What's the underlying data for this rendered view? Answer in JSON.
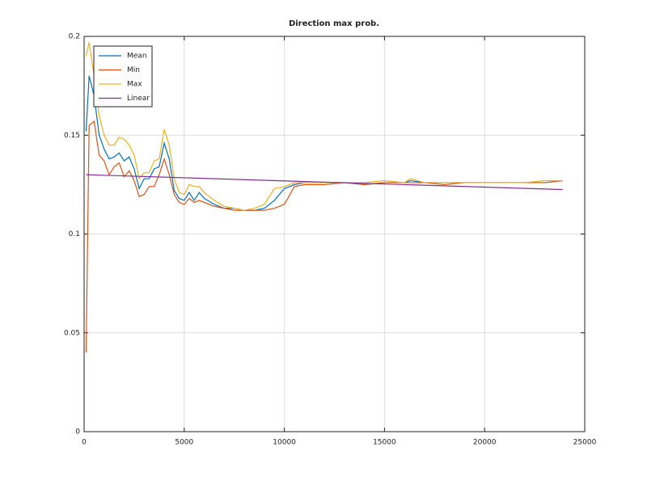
{
  "chart_data": {
    "type": "line",
    "title": "Direction max prob.",
    "x": [
      100,
      250,
      500,
      750,
      1000,
      1250,
      1500,
      1750,
      2000,
      2250,
      2500,
      2750,
      3000,
      3250,
      3500,
      3750,
      4000,
      4250,
      4500,
      4750,
      5000,
      5250,
      5500,
      5750,
      6000,
      6500,
      7000,
      7500,
      8000,
      8500,
      9000,
      9500,
      10000,
      10500,
      11000,
      12000,
      13000,
      14000,
      15000,
      16000,
      16300,
      17000,
      18000,
      19000,
      20000,
      21000,
      22000,
      23000,
      23900
    ],
    "series": [
      {
        "name": "Mean",
        "color": "#0072bd",
        "values": [
          0.152,
          0.18,
          0.17,
          0.15,
          0.143,
          0.138,
          0.139,
          0.141,
          0.137,
          0.139,
          0.133,
          0.123,
          0.128,
          0.128,
          0.133,
          0.134,
          0.146,
          0.138,
          0.122,
          0.118,
          0.117,
          0.121,
          0.117,
          0.121,
          0.118,
          0.115,
          0.113,
          0.113,
          0.112,
          0.112,
          0.113,
          0.117,
          0.123,
          0.125,
          0.126,
          0.126,
          0.126,
          0.125,
          0.126,
          0.126,
          0.127,
          0.126,
          0.126,
          0.126,
          0.126,
          0.126,
          0.126,
          0.126,
          0.127
        ]
      },
      {
        "name": "Min",
        "color": "#d95319",
        "values": [
          0.04,
          0.155,
          0.157,
          0.14,
          0.137,
          0.13,
          0.134,
          0.136,
          0.129,
          0.132,
          0.127,
          0.119,
          0.12,
          0.124,
          0.124,
          0.13,
          0.138,
          0.13,
          0.12,
          0.116,
          0.115,
          0.118,
          0.116,
          0.117,
          0.116,
          0.114,
          0.113,
          0.112,
          0.112,
          0.112,
          0.112,
          0.113,
          0.115,
          0.124,
          0.125,
          0.125,
          0.126,
          0.125,
          0.126,
          0.126,
          0.126,
          0.126,
          0.125,
          0.126,
          0.126,
          0.126,
          0.126,
          0.126,
          0.127
        ]
      },
      {
        "name": "Max",
        "color": "#edb120",
        "values": [
          0.19,
          0.197,
          0.18,
          0.16,
          0.15,
          0.145,
          0.145,
          0.149,
          0.148,
          0.145,
          0.14,
          0.128,
          0.131,
          0.131,
          0.137,
          0.138,
          0.153,
          0.145,
          0.128,
          0.121,
          0.12,
          0.125,
          0.124,
          0.124,
          0.121,
          0.117,
          0.114,
          0.113,
          0.112,
          0.113,
          0.115,
          0.123,
          0.124,
          0.126,
          0.126,
          0.126,
          0.126,
          0.126,
          0.127,
          0.126,
          0.128,
          0.126,
          0.126,
          0.126,
          0.126,
          0.126,
          0.126,
          0.127,
          0.127
        ]
      },
      {
        "name": "Linear",
        "color": "#7e2f8e",
        "x": [
          100,
          23900
        ],
        "values": [
          0.13,
          0.1225
        ]
      }
    ],
    "xlim": [
      0,
      25000
    ],
    "xticks": [
      0,
      5000,
      10000,
      15000,
      20000,
      25000
    ],
    "ylim": [
      0,
      0.2
    ],
    "yticks": [
      0,
      0.05,
      0.1,
      0.15,
      0.2
    ],
    "grid": true,
    "legend": "upper-left"
  }
}
